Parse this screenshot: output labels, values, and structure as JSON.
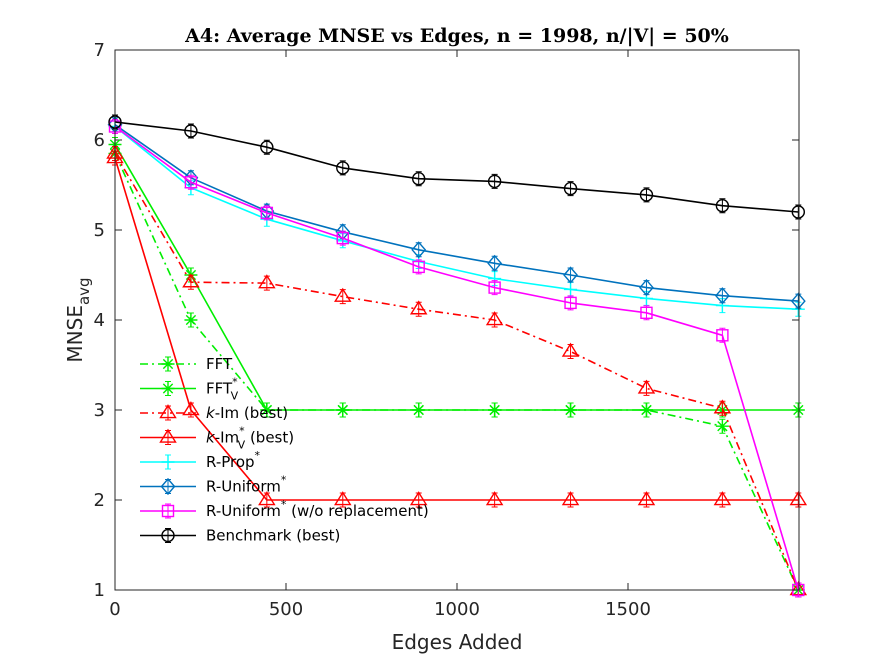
{
  "chart_data": {
    "type": "line",
    "title": "A4: Average MNSE vs Edges, n = 1998, n/|V| = 50%",
    "xlabel": "Edges Added",
    "ylabel": {
      "main": "MNSE",
      "sub": "avg"
    },
    "xlim": [
      0,
      2000
    ],
    "ylim": [
      1,
      7
    ],
    "xticks": [
      0,
      500,
      1000,
      1500
    ],
    "xtick_labels": [
      "0",
      "500",
      "1000",
      "1500"
    ],
    "yticks": [
      1,
      2,
      3,
      4,
      5,
      6,
      7
    ],
    "ytick_labels": [
      "1",
      "2",
      "3",
      "4",
      "5",
      "6",
      "7"
    ],
    "grid": false,
    "legend_position": "bottom-left",
    "x": [
      0,
      222,
      444,
      666,
      888,
      1110,
      1332,
      1554,
      1776,
      1998
    ],
    "series": [
      {
        "name": "FFT",
        "legend": [
          {
            "t": "FFT"
          }
        ],
        "color": "#00ee00",
        "dash": "8,4,2,4",
        "marker": "star",
        "values": [
          5.85,
          4.0,
          3.0,
          3.0,
          3.0,
          3.0,
          3.0,
          3.0,
          2.82,
          1.0
        ]
      },
      {
        "name": "FFT*V",
        "legend": [
          {
            "t": "FFT"
          },
          {
            "t": "*",
            "dy": -8,
            "small": true
          },
          {
            "t": "V",
            "dx": -7,
            "dy": 14,
            "small": true
          }
        ],
        "color": "#00ee00",
        "dash": "",
        "marker": "star",
        "values": [
          5.95,
          4.5,
          3.0,
          3.0,
          3.0,
          3.0,
          3.0,
          3.0,
          3.0,
          3.0
        ]
      },
      {
        "name": "k-Im (best)",
        "legend": [
          {
            "t": "k",
            "italic": true
          },
          {
            "t": "-Im (best)"
          }
        ],
        "color": "#ff0000",
        "dash": "8,4,2,4",
        "marker": "triangle",
        "values": [
          5.85,
          4.42,
          4.41,
          4.26,
          4.12,
          4.0,
          3.65,
          3.24,
          3.02,
          1.0
        ]
      },
      {
        "name": "k-Im*V (best)",
        "legend": [
          {
            "t": "k",
            "italic": true
          },
          {
            "t": "-Im"
          },
          {
            "t": "*",
            "dy": -8,
            "small": true
          },
          {
            "t": "V",
            "dx": -7,
            "dy": 14,
            "small": true
          },
          {
            "t": " (best)",
            "dy": -6
          }
        ],
        "color": "#ff0000",
        "dash": "",
        "marker": "triangle",
        "values": [
          5.8,
          3.0,
          2.0,
          2.0,
          2.0,
          2.0,
          2.0,
          2.0,
          2.0,
          2.0
        ]
      },
      {
        "name": "R-Prop*",
        "legend": [
          {
            "t": "R-Prop"
          },
          {
            "t": "*",
            "dy": -8,
            "small": true
          }
        ],
        "color": "#00ffff",
        "dash": "",
        "marker": "plus",
        "values": [
          6.15,
          5.47,
          5.12,
          4.88,
          4.65,
          4.46,
          4.34,
          4.24,
          4.16,
          4.12
        ]
      },
      {
        "name": "R-Uniform*",
        "legend": [
          {
            "t": "R-Uniform"
          },
          {
            "t": "*",
            "dy": -8,
            "small": true
          }
        ],
        "color": "#0072bd",
        "dash": "",
        "marker": "diamond",
        "values": [
          6.17,
          5.58,
          5.21,
          4.98,
          4.78,
          4.63,
          4.5,
          4.36,
          4.27,
          4.21
        ]
      },
      {
        "name": "R-Uniform* (w/o replacement)",
        "legend": [
          {
            "t": "R-Uniform"
          },
          {
            "t": "*",
            "dy": -8,
            "small": true
          },
          {
            "t": " (w/o replacement)",
            "dy": 8
          }
        ],
        "color": "#ff00ff",
        "dash": "",
        "marker": "square",
        "values": [
          6.15,
          5.53,
          5.19,
          4.91,
          4.59,
          4.36,
          4.19,
          4.08,
          3.83,
          1.0
        ]
      },
      {
        "name": "Benchmark (best)",
        "legend": [
          {
            "t": "Benchmark (best)"
          }
        ],
        "color": "#000000",
        "dash": "",
        "marker": "circle",
        "values": [
          6.2,
          6.1,
          5.92,
          5.69,
          5.57,
          5.54,
          5.46,
          5.39,
          5.27,
          5.2
        ]
      }
    ]
  }
}
